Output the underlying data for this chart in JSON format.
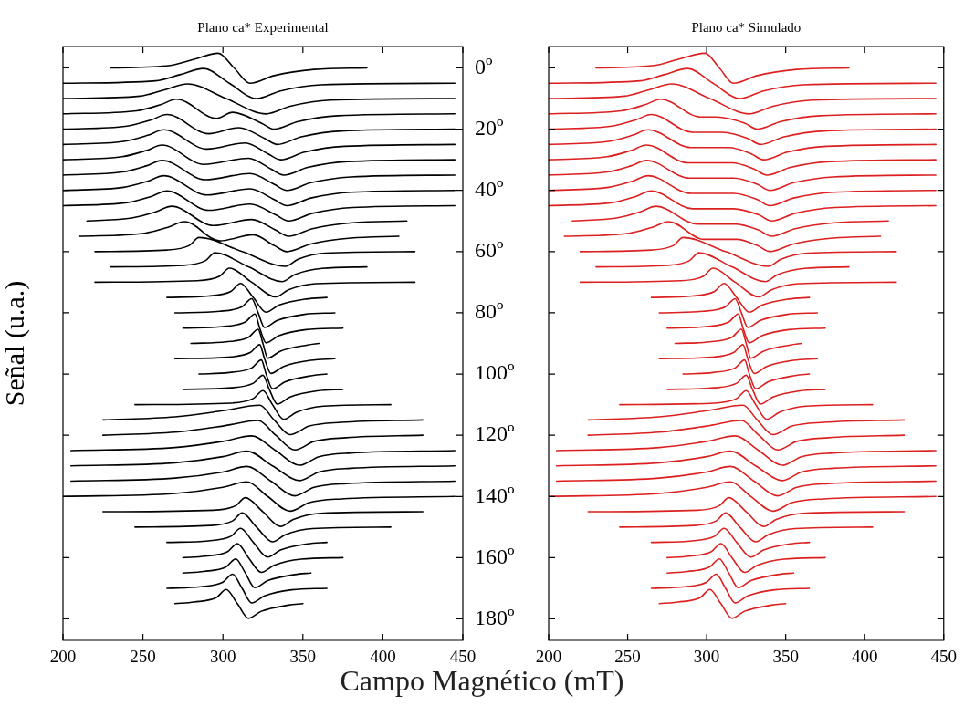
{
  "chart_data": [
    {
      "type": "line",
      "title": "Plano ca* Experimental",
      "xlabel": "Campo Magnético (mT)",
      "ylabel": "Señal (u.a.)",
      "xlim": [
        200,
        450
      ],
      "xticks": [
        200,
        250,
        300,
        350,
        400,
        450
      ],
      "ylim": [
        187,
        -7
      ],
      "yticks": [
        {
          "value": 0,
          "label": null
        },
        {
          "value": 20,
          "label": null
        },
        {
          "value": 40,
          "label": null
        },
        {
          "value": 60,
          "label": null
        },
        {
          "value": 80,
          "label": null
        },
        {
          "value": 100,
          "label": null
        },
        {
          "value": 120,
          "label": null
        },
        {
          "value": 140,
          "label": null
        },
        {
          "value": 160,
          "label": null
        },
        {
          "value": 180,
          "label": null
        }
      ],
      "tick_labels": "x",
      "series": [
        {
          "color": "#000000",
          "x": [
            230,
            267,
            282,
            297,
            307,
            317,
            332,
            357,
            390
          ],
          "values": [
            0,
            -0.8,
            -2.8,
            -4.8,
            0,
            5,
            2.5,
            0.5,
            0
          ]
        },
        {
          "color": "#000000",
          "x": [
            200,
            258,
            273,
            288,
            304,
            321,
            336,
            361,
            445
          ],
          "values": [
            5,
            4.2,
            2.2,
            0.2,
            5,
            10,
            7.5,
            5.5,
            5
          ]
        },
        {
          "color": "#000000",
          "x": [
            200,
            248,
            263,
            278,
            302,
            327,
            342,
            367,
            445
          ],
          "values": [
            10,
            9.2,
            7.2,
            5.2,
            10,
            15,
            12.5,
            10.5,
            10
          ]
        },
        {
          "color": "#000000",
          "x": [
            200,
            246,
            261,
            271,
            296,
            306,
            324,
            332,
            347,
            372,
            445
          ],
          "values": [
            15,
            14,
            12,
            10.2,
            16.5,
            14.5,
            18,
            20,
            17.5,
            15.6,
            15
          ]
        },
        {
          "color": "#000000",
          "x": [
            200,
            240,
            255,
            265,
            291,
            310,
            326,
            334,
            349,
            374,
            445
          ],
          "values": [
            20,
            19,
            17,
            15.2,
            21.5,
            19.5,
            23,
            25,
            22.5,
            20.6,
            20
          ]
        },
        {
          "color": "#000000",
          "x": [
            200,
            238,
            253,
            263,
            290,
            314,
            328,
            336,
            351,
            376,
            445
          ],
          "values": [
            25,
            24,
            22,
            20.2,
            26.5,
            24.5,
            28,
            30,
            27.5,
            25.6,
            25
          ]
        },
        {
          "color": "#000000",
          "x": [
            200,
            237,
            252,
            262,
            288,
            316,
            330,
            338,
            353,
            378,
            445
          ],
          "values": [
            30,
            29,
            27,
            25.2,
            31.5,
            29.5,
            33,
            35,
            32.5,
            30.6,
            30
          ]
        },
        {
          "color": "#000000",
          "x": [
            200,
            237,
            252,
            262,
            289,
            317,
            332,
            340,
            355,
            380,
            445
          ],
          "values": [
            35,
            34,
            32,
            30.2,
            36.5,
            34.5,
            38,
            40,
            37.5,
            35.6,
            35
          ]
        },
        {
          "color": "#000000",
          "x": [
            200,
            238,
            253,
            263,
            290,
            317,
            332,
            340,
            355,
            380,
            445
          ],
          "values": [
            40,
            39,
            37,
            35.2,
            41.5,
            39.5,
            43,
            45,
            42.5,
            40.6,
            40
          ]
        },
        {
          "color": "#000000",
          "x": [
            200,
            240,
            255,
            265,
            291,
            317,
            333,
            341,
            356,
            381,
            445
          ],
          "values": [
            45,
            44,
            42,
            40.2,
            46.5,
            44.5,
            48,
            50,
            47.5,
            45.6,
            45
          ]
        },
        {
          "color": "#000000",
          "x": [
            215,
            243,
            258,
            268,
            294,
            318,
            333,
            341,
            356,
            381,
            415
          ],
          "values": [
            50,
            49,
            47,
            45.2,
            51.5,
            49.5,
            53,
            55,
            52.5,
            50.6,
            50
          ]
        },
        {
          "color": "#000000",
          "x": [
            210,
            251,
            266,
            276,
            298,
            319,
            332,
            340,
            355,
            380,
            410
          ],
          "values": [
            55,
            54,
            52,
            50.2,
            56.5,
            54.5,
            58,
            60,
            57.5,
            55.6,
            55
          ]
        },
        {
          "color": "#000000",
          "x": [
            220,
            265,
            279,
            285,
            312,
            339,
            347,
            364,
            420
          ],
          "values": [
            60,
            59.5,
            58,
            55.4,
            60,
            64.8,
            62.5,
            60.5,
            60
          ]
        },
        {
          "color": "#000000",
          "x": [
            230,
            275,
            289,
            295,
            316,
            337,
            345,
            362,
            390
          ],
          "values": [
            65,
            64.5,
            63,
            60.4,
            65,
            69.8,
            67.5,
            65.5,
            65
          ]
        },
        {
          "color": "#000000",
          "x": [
            220,
            284,
            298,
            304,
            318,
            333,
            341,
            358,
            420
          ],
          "values": [
            70,
            69.5,
            68,
            65.4,
            70,
            74.8,
            72.5,
            70.5,
            70
          ]
        },
        {
          "color": "#000000",
          "x": [
            265,
            291,
            305,
            311,
            319,
            327,
            335,
            352,
            365
          ],
          "values": [
            75,
            74.5,
            73,
            70.4,
            75,
            79.8,
            77.5,
            75.5,
            75
          ]
        },
        {
          "color": "#000000",
          "x": [
            270,
            298,
            312,
            318,
            322,
            326,
            334,
            351,
            370
          ],
          "values": [
            80,
            79.5,
            78,
            75.4,
            80,
            84.8,
            82.5,
            80.5,
            80
          ]
        },
        {
          "color": "#000000",
          "x": [
            275,
            300,
            314,
            320,
            323,
            327,
            335,
            352,
            375
          ],
          "values": [
            85,
            84.5,
            83,
            80.4,
            85,
            89.8,
            87.5,
            85.5,
            85
          ]
        },
        {
          "color": "#000000",
          "x": [
            280,
            302,
            316,
            322,
            325,
            328,
            336,
            353,
            360
          ],
          "values": [
            90,
            89.5,
            88,
            85.4,
            90,
            94.8,
            92.5,
            90.5,
            90
          ]
        },
        {
          "color": "#000000",
          "x": [
            270,
            303,
            317,
            323,
            326,
            330,
            338,
            355,
            370
          ],
          "values": [
            95,
            94.5,
            93,
            90.4,
            95,
            99.8,
            97.5,
            95.5,
            95
          ]
        },
        {
          "color": "#000000",
          "x": [
            285,
            304,
            318,
            324,
            327,
            331,
            339,
            356,
            365
          ],
          "values": [
            100,
            99.5,
            98,
            95.4,
            100,
            104.8,
            102.5,
            100.5,
            100
          ]
        },
        {
          "color": "#000000",
          "x": [
            275,
            305,
            319,
            325,
            329,
            334,
            342,
            359,
            375
          ],
          "values": [
            105,
            104.5,
            103,
            100.4,
            105,
            109.8,
            107.5,
            105.5,
            105
          ]
        },
        {
          "color": "#000000",
          "x": [
            245,
            305,
            319,
            325,
            331,
            338,
            346,
            363,
            405
          ],
          "values": [
            110,
            109.5,
            108,
            105.4,
            110,
            114.8,
            112.5,
            110.5,
            110
          ]
        },
        {
          "color": "#000000",
          "x": [
            225,
            270,
            300,
            323,
            332,
            342,
            354,
            374,
            425
          ],
          "values": [
            115,
            114,
            112,
            110.2,
            115,
            119.8,
            117,
            115.8,
            115
          ]
        },
        {
          "color": "#000000",
          "x": [
            225,
            270,
            300,
            322,
            333,
            345,
            357,
            377,
            425
          ],
          "values": [
            120,
            119,
            117,
            115.2,
            120,
            124.8,
            122,
            120.8,
            120
          ]
        },
        {
          "color": "#000000",
          "x": [
            205,
            270,
            300,
            318,
            333,
            348,
            360,
            380,
            445
          ],
          "values": [
            125,
            124,
            122,
            120.2,
            125,
            129.8,
            127,
            125.8,
            125
          ]
        },
        {
          "color": "#000000",
          "x": [
            205,
            270,
            300,
            315,
            331,
            348,
            360,
            380,
            445
          ],
          "values": [
            130,
            129,
            127,
            125.2,
            130,
            134.8,
            132,
            130.8,
            130
          ]
        },
        {
          "color": "#000000",
          "x": [
            205,
            270,
            300,
            315,
            330,
            345,
            357,
            377,
            445
          ],
          "values": [
            135,
            134,
            132,
            130.2,
            135,
            139.8,
            137,
            135.8,
            135
          ]
        },
        {
          "color": "#000000",
          "x": [
            200,
            270,
            300,
            315,
            328,
            342,
            354,
            374,
            445
          ],
          "values": [
            140,
            139,
            137,
            135.2,
            140,
            144.8,
            142,
            140.8,
            140
          ]
        },
        {
          "color": "#000000",
          "x": [
            225,
            294,
            308,
            314,
            325,
            336,
            344,
            361,
            425
          ],
          "values": [
            145,
            144.5,
            143,
            140.4,
            145,
            149.8,
            147.5,
            145.5,
            145
          ]
        },
        {
          "color": "#000000",
          "x": [
            245,
            292,
            306,
            312,
            321,
            331,
            339,
            356,
            405
          ],
          "values": [
            150,
            149.5,
            148,
            145.4,
            150,
            154.8,
            152.5,
            150.5,
            150
          ]
        },
        {
          "color": "#000000",
          "x": [
            265,
            291,
            305,
            311,
            319,
            328,
            336,
            353,
            365
          ],
          "values": [
            155,
            154.5,
            153,
            150.4,
            155,
            159.8,
            157.5,
            155.5,
            155
          ]
        },
        {
          "color": "#000000",
          "x": [
            275,
            289,
            303,
            309,
            316,
            324,
            332,
            349,
            375
          ],
          "values": [
            160,
            159.5,
            158,
            155.4,
            160,
            164.8,
            162.5,
            160.5,
            160
          ]
        },
        {
          "color": "#000000",
          "x": [
            275,
            288,
            302,
            308,
            314,
            320,
            328,
            345,
            355
          ],
          "values": [
            165,
            164.5,
            163,
            160.4,
            165,
            169.8,
            167.5,
            165.5,
            165
          ]
        },
        {
          "color": "#000000",
          "x": [
            265,
            286,
            300,
            306,
            312,
            318,
            326,
            343,
            365
          ],
          "values": [
            170,
            169.5,
            168,
            165.4,
            170,
            174.8,
            172.5,
            170.5,
            170
          ]
        },
        {
          "color": "#000000",
          "x": [
            270,
            282,
            296,
            302,
            309,
            316,
            324,
            341,
            350
          ],
          "values": [
            175,
            174.5,
            173,
            170.4,
            175,
            179.8,
            177.5,
            175.5,
            175
          ]
        }
      ]
    },
    {
      "type": "line",
      "title": "Plano ca* Simulado",
      "xlim": [
        200,
        450
      ],
      "xticks": [
        200,
        250,
        300,
        350,
        400,
        450
      ],
      "ylim": [
        187,
        -7
      ],
      "yticks": [
        {
          "value": 0,
          "label": "0º"
        },
        {
          "value": 20,
          "label": "20º"
        },
        {
          "value": 40,
          "label": "40º"
        },
        {
          "value": 60,
          "label": "60º"
        },
        {
          "value": 80,
          "label": "80º"
        },
        {
          "value": 100,
          "label": "100º"
        },
        {
          "value": 120,
          "label": "120º"
        },
        {
          "value": 140,
          "label": "140º"
        },
        {
          "value": 160,
          "label": "160º"
        },
        {
          "value": 180,
          "label": "180º"
        }
      ],
      "series": [
        {
          "color": "#dc1f1f",
          "x": [
            230,
            267,
            282,
            299,
            308,
            317,
            332,
            357,
            390
          ],
          "values": [
            0,
            -0.8,
            -2.8,
            -4.8,
            0,
            5,
            2.5,
            0.5,
            0
          ]
        },
        {
          "color": "#dc1f1f",
          "x": [
            200,
            258,
            273,
            288,
            304,
            321,
            336,
            361,
            445
          ],
          "values": [
            5,
            4.2,
            2.2,
            0.2,
            5,
            10,
            7.5,
            5.5,
            5
          ]
        },
        {
          "color": "#dc1f1f",
          "x": [
            200,
            248,
            263,
            278,
            302,
            327,
            342,
            367,
            445
          ],
          "values": [
            10,
            9.2,
            7.2,
            5.2,
            10,
            15,
            12.5,
            10.5,
            10
          ]
        },
        {
          "color": "#dc1f1f",
          "x": [
            200,
            246,
            261,
            271,
            296,
            306,
            324,
            332,
            347,
            372,
            445
          ],
          "values": [
            15,
            14,
            12,
            10.2,
            16,
            16,
            18,
            20,
            17.5,
            15.6,
            15
          ]
        },
        {
          "color": "#dc1f1f",
          "x": [
            200,
            240,
            255,
            265,
            291,
            310,
            326,
            334,
            349,
            374,
            445
          ],
          "values": [
            20,
            19,
            17,
            15.2,
            21,
            21,
            23,
            25,
            22.5,
            20.6,
            20
          ]
        },
        {
          "color": "#dc1f1f",
          "x": [
            200,
            238,
            253,
            263,
            290,
            314,
            328,
            336,
            351,
            376,
            445
          ],
          "values": [
            25,
            24,
            22,
            20.2,
            26,
            26,
            28,
            30,
            27.5,
            25.6,
            25
          ]
        },
        {
          "color": "#dc1f1f",
          "x": [
            200,
            237,
            252,
            262,
            288,
            316,
            330,
            338,
            353,
            378,
            445
          ],
          "values": [
            30,
            29,
            27,
            25.2,
            31,
            31,
            33,
            35,
            32.5,
            30.6,
            30
          ]
        },
        {
          "color": "#dc1f1f",
          "x": [
            200,
            237,
            252,
            262,
            289,
            317,
            332,
            340,
            355,
            380,
            445
          ],
          "values": [
            35,
            34,
            32,
            30.2,
            36,
            36,
            38,
            40,
            37.5,
            35.6,
            35
          ]
        },
        {
          "color": "#dc1f1f",
          "x": [
            200,
            238,
            253,
            263,
            290,
            317,
            332,
            340,
            355,
            380,
            445
          ],
          "values": [
            40,
            39,
            37,
            35.2,
            41,
            41,
            43,
            45,
            42.5,
            40.6,
            40
          ]
        },
        {
          "color": "#dc1f1f",
          "x": [
            200,
            240,
            255,
            265,
            291,
            317,
            333,
            341,
            356,
            381,
            445
          ],
          "values": [
            45,
            44,
            42,
            40.2,
            46,
            46,
            48,
            50,
            47.5,
            45.6,
            45
          ]
        },
        {
          "color": "#dc1f1f",
          "x": [
            215,
            243,
            258,
            268,
            294,
            318,
            333,
            341,
            356,
            381,
            415
          ],
          "values": [
            50,
            49,
            47,
            45.2,
            51,
            51,
            53,
            55,
            52.5,
            50.6,
            50
          ]
        },
        {
          "color": "#dc1f1f",
          "x": [
            210,
            251,
            266,
            276,
            298,
            319,
            332,
            340,
            355,
            380,
            410
          ],
          "values": [
            55,
            54,
            52,
            50.2,
            56,
            56,
            58,
            60,
            57.5,
            55.6,
            55
          ]
        },
        {
          "color": "#dc1f1f",
          "x": [
            220,
            265,
            279,
            285,
            312,
            339,
            347,
            364,
            420
          ],
          "values": [
            60,
            59.5,
            58,
            55.4,
            60,
            64.8,
            62.5,
            60.5,
            60
          ]
        },
        {
          "color": "#dc1f1f",
          "x": [
            230,
            275,
            289,
            295,
            316,
            337,
            345,
            362,
            390
          ],
          "values": [
            65,
            64.5,
            63,
            60.4,
            65,
            69.8,
            67.5,
            65.5,
            65
          ]
        },
        {
          "color": "#dc1f1f",
          "x": [
            220,
            284,
            298,
            304,
            318,
            333,
            341,
            358,
            420
          ],
          "values": [
            70,
            69.5,
            68,
            65.4,
            70,
            74.8,
            72.5,
            70.5,
            70
          ]
        },
        {
          "color": "#dc1f1f",
          "x": [
            265,
            291,
            305,
            311,
            319,
            327,
            335,
            352,
            365
          ],
          "values": [
            75,
            74.5,
            73,
            70.4,
            75,
            79.8,
            77.5,
            75.5,
            75
          ]
        },
        {
          "color": "#dc1f1f",
          "x": [
            270,
            298,
            312,
            318,
            322,
            326,
            334,
            351,
            370
          ],
          "values": [
            80,
            79.5,
            78,
            75.4,
            80,
            84.8,
            82.5,
            80.5,
            80
          ]
        },
        {
          "color": "#dc1f1f",
          "x": [
            275,
            300,
            314,
            320,
            323,
            327,
            335,
            352,
            375
          ],
          "values": [
            85,
            84.5,
            83,
            80.4,
            85,
            89.8,
            87.5,
            85.5,
            85
          ]
        },
        {
          "color": "#dc1f1f",
          "x": [
            280,
            302,
            316,
            322,
            325,
            328,
            336,
            353,
            360
          ],
          "values": [
            90,
            89.5,
            88,
            85.4,
            90,
            94.8,
            92.5,
            90.5,
            90
          ]
        },
        {
          "color": "#dc1f1f",
          "x": [
            270,
            303,
            317,
            323,
            326,
            330,
            338,
            355,
            370
          ],
          "values": [
            95,
            94.5,
            93,
            90.4,
            95,
            99.8,
            97.5,
            95.5,
            95
          ]
        },
        {
          "color": "#dc1f1f",
          "x": [
            285,
            304,
            318,
            324,
            327,
            331,
            339,
            356,
            365
          ],
          "values": [
            100,
            99.5,
            98,
            95.4,
            100,
            104.8,
            102.5,
            100.5,
            100
          ]
        },
        {
          "color": "#dc1f1f",
          "x": [
            275,
            305,
            319,
            325,
            329,
            334,
            342,
            359,
            375
          ],
          "values": [
            105,
            104.5,
            103,
            100.4,
            105,
            109.8,
            107.5,
            105.5,
            105
          ]
        },
        {
          "color": "#dc1f1f",
          "x": [
            245,
            305,
            319,
            325,
            331,
            338,
            346,
            363,
            405
          ],
          "values": [
            110,
            109.5,
            108,
            105.4,
            110,
            114.8,
            112.5,
            110.5,
            110
          ]
        },
        {
          "color": "#dc1f1f",
          "x": [
            225,
            270,
            300,
            323,
            332,
            342,
            354,
            374,
            425
          ],
          "values": [
            115,
            114,
            112,
            110.2,
            115,
            119.8,
            117,
            115.8,
            115
          ]
        },
        {
          "color": "#dc1f1f",
          "x": [
            225,
            270,
            300,
            322,
            333,
            345,
            357,
            377,
            425
          ],
          "values": [
            120,
            119,
            117,
            115.2,
            120,
            124.8,
            122,
            120.8,
            120
          ]
        },
        {
          "color": "#dc1f1f",
          "x": [
            205,
            270,
            300,
            318,
            333,
            348,
            360,
            380,
            445
          ],
          "values": [
            125,
            124,
            122,
            120.2,
            125,
            129.8,
            127,
            125.8,
            125
          ]
        },
        {
          "color": "#dc1f1f",
          "x": [
            205,
            270,
            300,
            315,
            331,
            348,
            360,
            380,
            445
          ],
          "values": [
            130,
            129,
            127,
            125.2,
            130,
            134.8,
            132,
            130.8,
            130
          ]
        },
        {
          "color": "#dc1f1f",
          "x": [
            205,
            270,
            300,
            315,
            330,
            345,
            357,
            377,
            445
          ],
          "values": [
            135,
            134,
            132,
            130.2,
            135,
            139.8,
            137,
            135.8,
            135
          ]
        },
        {
          "color": "#dc1f1f",
          "x": [
            200,
            270,
            300,
            315,
            328,
            342,
            354,
            374,
            445
          ],
          "values": [
            140,
            139,
            137,
            135.2,
            140,
            144.8,
            142,
            140.8,
            140
          ]
        },
        {
          "color": "#dc1f1f",
          "x": [
            225,
            294,
            308,
            314,
            325,
            336,
            344,
            361,
            425
          ],
          "values": [
            145,
            144.5,
            143,
            140.4,
            145,
            149.8,
            147.5,
            145.5,
            145
          ]
        },
        {
          "color": "#dc1f1f",
          "x": [
            245,
            292,
            306,
            312,
            321,
            331,
            339,
            356,
            405
          ],
          "values": [
            150,
            149.5,
            148,
            145.4,
            150,
            154.8,
            152.5,
            150.5,
            150
          ]
        },
        {
          "color": "#dc1f1f",
          "x": [
            265,
            291,
            305,
            311,
            319,
            328,
            336,
            353,
            365
          ],
          "values": [
            155,
            154.5,
            153,
            150.4,
            155,
            159.8,
            157.5,
            155.5,
            155
          ]
        },
        {
          "color": "#dc1f1f",
          "x": [
            275,
            289,
            303,
            309,
            316,
            324,
            332,
            349,
            375
          ],
          "values": [
            160,
            159.5,
            158,
            155.4,
            160,
            164.8,
            162.5,
            160.5,
            160
          ]
        },
        {
          "color": "#dc1f1f",
          "x": [
            275,
            288,
            302,
            308,
            314,
            320,
            328,
            345,
            355
          ],
          "values": [
            165,
            164.5,
            163,
            160.4,
            165,
            169.8,
            167.5,
            165.5,
            165
          ]
        },
        {
          "color": "#dc1f1f",
          "x": [
            265,
            286,
            300,
            306,
            312,
            318,
            326,
            343,
            365
          ],
          "values": [
            170,
            169.5,
            168,
            165.4,
            170,
            174.8,
            172.5,
            170.5,
            170
          ]
        },
        {
          "color": "#dc1f1f",
          "x": [
            270,
            282,
            296,
            302,
            309,
            316,
            324,
            341,
            350
          ],
          "values": [
            175,
            174.5,
            173,
            170.4,
            175,
            179.8,
            177.5,
            175.5,
            175
          ]
        }
      ]
    }
  ]
}
